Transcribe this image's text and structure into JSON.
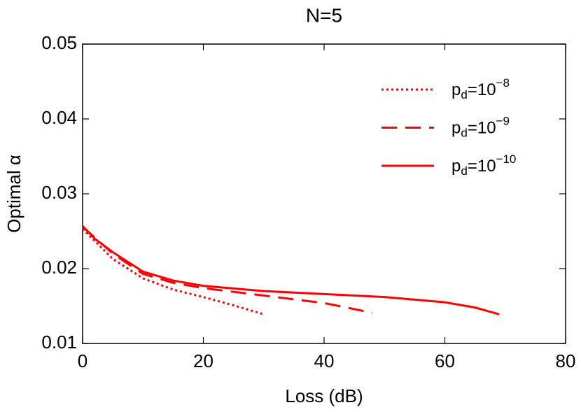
{
  "chart_data": {
    "type": "line",
    "title": "N=5",
    "x_label": "Loss (dB)",
    "y_label": "Optimal α",
    "xlim": [
      0,
      80
    ],
    "xticks": [
      0,
      20,
      40,
      60,
      80
    ],
    "ylim": [
      0.01,
      0.05
    ],
    "yticks": [
      0.01,
      0.02,
      0.03,
      0.04,
      0.05
    ],
    "legend_position": "upper right",
    "series": [
      {
        "name": [
          "p",
          "d",
          "=10",
          "−8"
        ],
        "color": "#ff0000",
        "dash": "dotted",
        "x": [
          0,
          5,
          10,
          15,
          20,
          25,
          30
        ],
        "values": [
          0.0253,
          0.0213,
          0.0187,
          0.0172,
          0.0162,
          0.0151,
          0.0139
        ]
      },
      {
        "name": [
          "p",
          "d",
          "=10",
          "−9"
        ],
        "color": "#ff0000",
        "dash": "dashed",
        "x": [
          0,
          5,
          10,
          15,
          20,
          30,
          40,
          48
        ],
        "values": [
          0.0256,
          0.022,
          0.0193,
          0.0181,
          0.0174,
          0.0164,
          0.0154,
          0.0141
        ]
      },
      {
        "name": [
          "p",
          "d",
          "=10",
          "−10"
        ],
        "color": "#ff0000",
        "dash": "solid",
        "x": [
          0,
          2,
          5,
          10,
          15,
          20,
          30,
          40,
          50,
          60,
          65,
          69
        ],
        "values": [
          0.0257,
          0.024,
          0.0222,
          0.0196,
          0.0184,
          0.0177,
          0.017,
          0.0166,
          0.0162,
          0.0155,
          0.0148,
          0.0139
        ]
      }
    ]
  }
}
